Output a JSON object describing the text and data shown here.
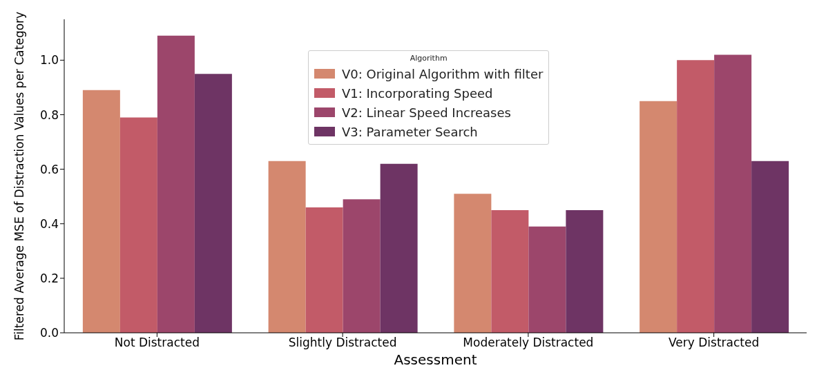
{
  "chart_data": {
    "type": "bar",
    "xlabel": "Assessment",
    "ylabel": "Filtered Average MSE of Distraction Values per Category",
    "legend_title": "Algorithm",
    "categories": [
      "Not Distracted",
      "Slightly Distracted",
      "Moderately Distracted",
      "Very Distracted"
    ],
    "series": [
      {
        "name": "V0: Original Algorithm with filter",
        "color": "#d4886f",
        "values": [
          0.89,
          0.63,
          0.51,
          0.85
        ]
      },
      {
        "name": "V1: Incorporating Speed",
        "color": "#c25b68",
        "values": [
          0.79,
          0.46,
          0.45,
          1.0
        ]
      },
      {
        "name": "V2: Linear Speed Increases",
        "color": "#9c466b",
        "values": [
          1.09,
          0.49,
          0.39,
          1.02
        ]
      },
      {
        "name": "V3: Parameter Search",
        "color": "#6e3464",
        "values": [
          0.95,
          0.62,
          0.45,
          0.63
        ]
      }
    ],
    "ylim": [
      0,
      1.15
    ],
    "yticks": [
      {
        "value": 0,
        "label": "0.0"
      },
      {
        "value": 0.2,
        "label": "0.2"
      },
      {
        "value": 0.4,
        "label": "0.4"
      },
      {
        "value": 0.6,
        "label": "0.6"
      },
      {
        "value": 0.8,
        "label": "0.8"
      },
      {
        "value": 1,
        "label": "1.0"
      }
    ],
    "grid": false,
    "legend": "top"
  }
}
